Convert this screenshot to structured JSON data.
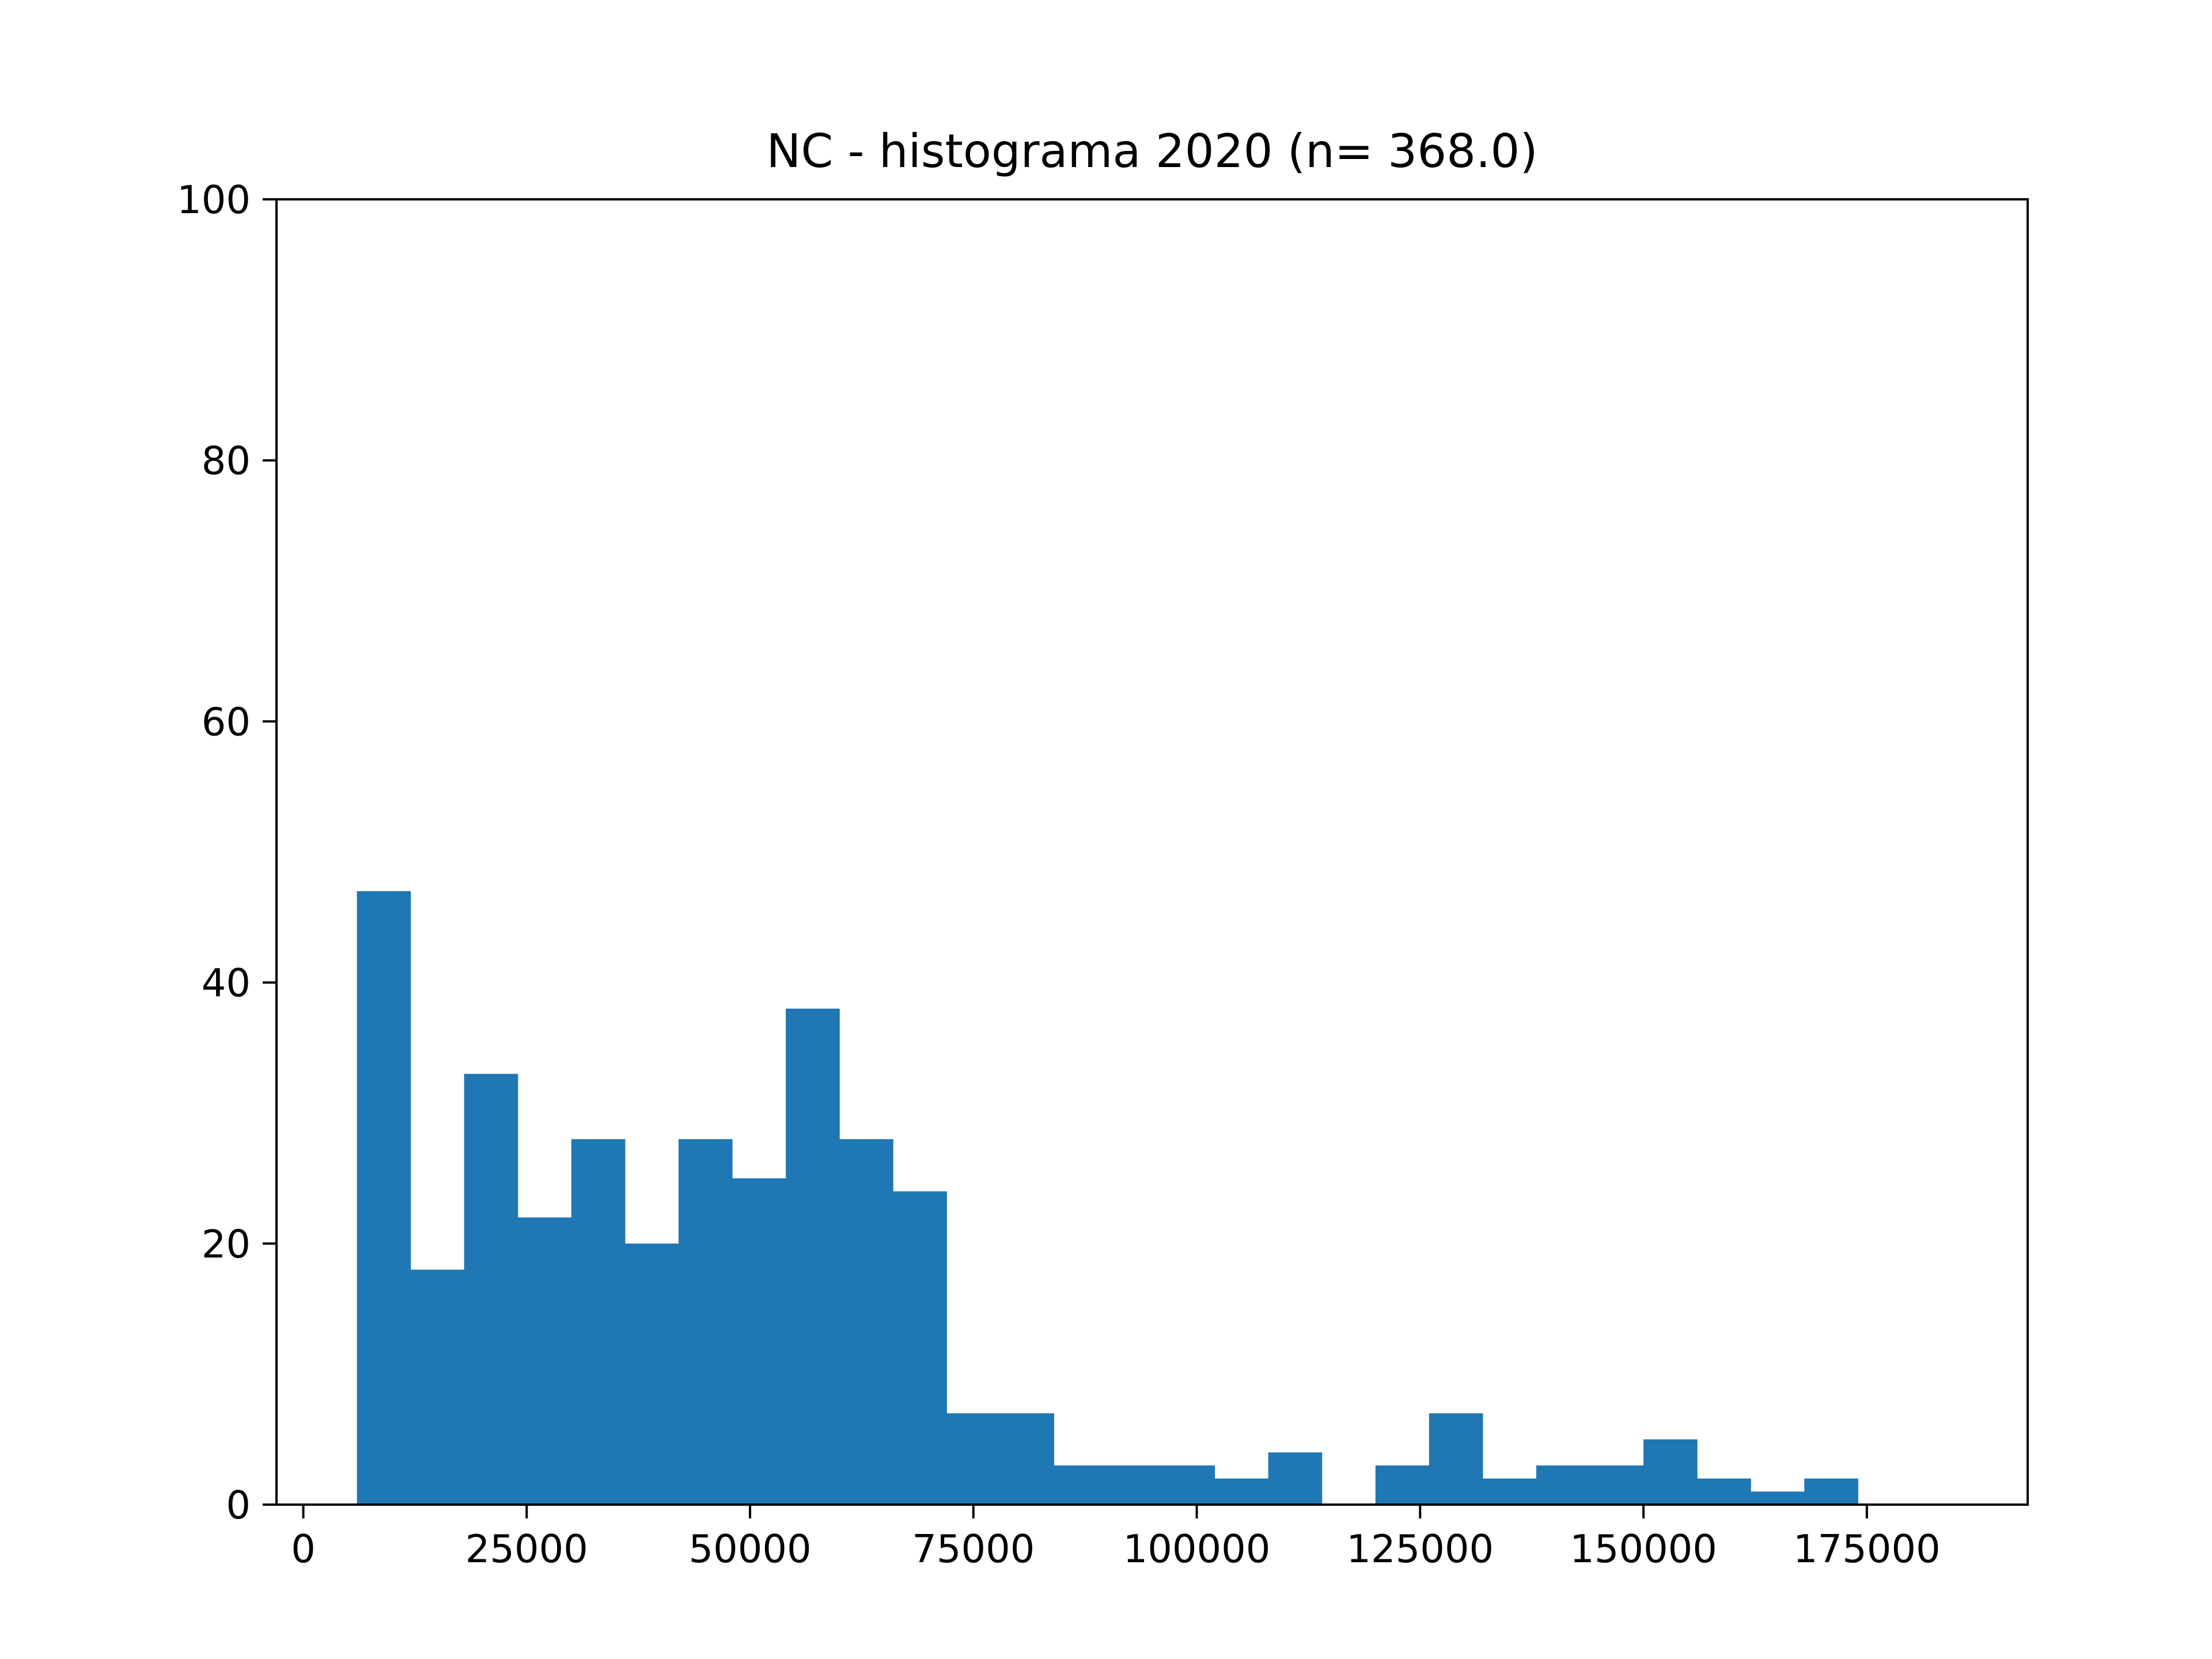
{
  "chart_data": {
    "type": "bar",
    "title": "NC - histograma 2020 (n= 368.0)",
    "xlabel": "",
    "ylabel": "",
    "xlim": [
      -3000,
      193000
    ],
    "ylim": [
      0,
      100
    ],
    "x_ticks": [
      0,
      25000,
      50000,
      75000,
      100000,
      125000,
      150000,
      175000
    ],
    "x_tick_labels": [
      "0",
      "25000",
      "50000",
      "75000",
      "100000",
      "125000",
      "150000",
      "175000"
    ],
    "y_ticks": [
      0,
      20,
      40,
      60,
      80,
      100
    ],
    "y_tick_labels": [
      "0",
      "20",
      "40",
      "60",
      "80",
      "100"
    ],
    "grid": false,
    "bar_color": "#1f77b4",
    "bin_edges": [
      6000,
      12000,
      18000,
      24000,
      30000,
      36000,
      42000,
      48000,
      54000,
      60000,
      66000,
      72000,
      78000,
      84000,
      90000,
      96000,
      102000,
      108000,
      114000,
      120000,
      126000,
      132000,
      138000,
      144000,
      150000,
      156000,
      162000,
      168000,
      174000,
      180000,
      186000
    ],
    "values": [
      47,
      18,
      33,
      22,
      28,
      20,
      28,
      25,
      38,
      28,
      24,
      7,
      7,
      3,
      3,
      3,
      2,
      4,
      0,
      3,
      7,
      2,
      3,
      3,
      5,
      2,
      1,
      2,
      0,
      0
    ]
  }
}
